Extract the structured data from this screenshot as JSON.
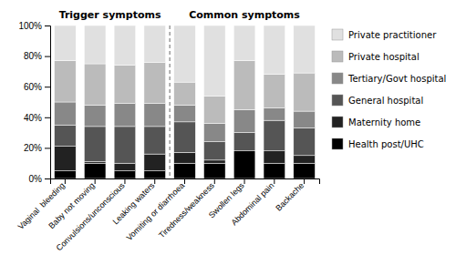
{
  "chart_data": {
    "type": "bar",
    "stacked": true,
    "categories": [
      "Vaginal  bleeding",
      "Baby not moving",
      "Convulsions/unconscious",
      "Leaking waters",
      "Vomiting or diarrhoea",
      "Tiredness/weakness",
      "Swollen legs",
      "Abdominal pain",
      "Backache"
    ],
    "series": [
      {
        "name": "Health post/UHC",
        "color": "#000000",
        "values": [
          5,
          10,
          5,
          5,
          10,
          10,
          18,
          10,
          10
        ]
      },
      {
        "name": "Maternity home",
        "color": "#222222",
        "values": [
          16,
          1,
          5,
          11,
          7,
          2,
          0,
          8,
          5
        ]
      },
      {
        "name": "General hospital",
        "color": "#555555",
        "values": [
          14,
          23,
          24,
          18,
          20,
          12,
          12,
          20,
          18
        ]
      },
      {
        "name": "Tertiary/Govt hospital",
        "color": "#888888",
        "values": [
          15,
          14,
          15,
          15,
          11,
          12,
          15,
          8,
          11
        ]
      },
      {
        "name": "Private hospital",
        "color": "#bbbbbb",
        "values": [
          27,
          27,
          25,
          27,
          15,
          18,
          32,
          22,
          25
        ]
      },
      {
        "name": "Private practitioner",
        "color": "#e0e0e0",
        "values": [
          23,
          25,
          26,
          24,
          37,
          46,
          23,
          32,
          31
        ]
      }
    ],
    "ylim": [
      0,
      100
    ],
    "yticks": [
      {
        "value": 0,
        "label": "0%"
      },
      {
        "value": 20,
        "label": "20%"
      },
      {
        "value": 40,
        "label": "40%"
      },
      {
        "value": 60,
        "label": "60%"
      },
      {
        "value": 80,
        "label": "80%"
      },
      {
        "value": 100,
        "label": "100%"
      }
    ],
    "annotations": [
      {
        "text": "Trigger symptoms",
        "from": "Vaginal  bleeding",
        "to": "Leaking waters"
      },
      {
        "text": "Common symptoms",
        "from": "Vomiting or diarrhoea",
        "to": "Backache"
      }
    ],
    "legend": "right",
    "grid": false
  }
}
